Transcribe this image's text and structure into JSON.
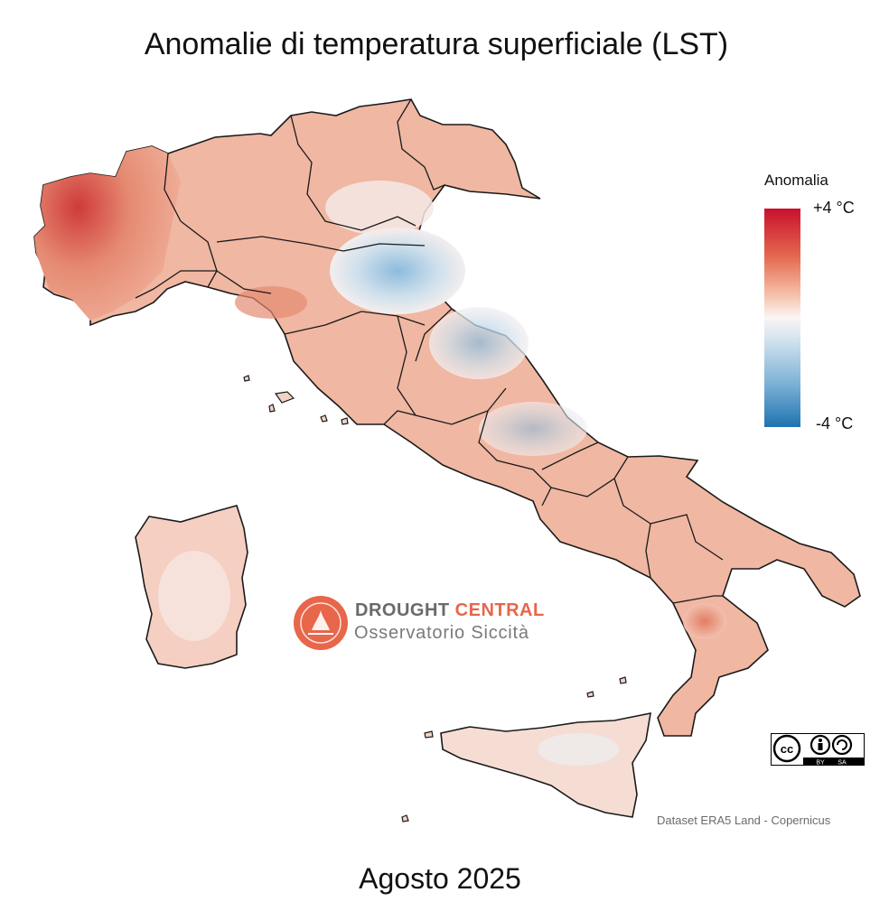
{
  "title": "Anomalie di temperatura superficiale (LST)",
  "subtitle": "Agosto 2025",
  "legend": {
    "title": "Anomalia",
    "max_label": "+4 °C",
    "min_label": "-4 °C",
    "range": [
      -4,
      4
    ],
    "colors": {
      "warm": "#c8102e",
      "neutral": "#fbf5f3",
      "cool": "#1f73b0"
    }
  },
  "logo": {
    "name_part1": "DROUGHT ",
    "name_part2": "CENTRAL",
    "tagline": "Osservatorio Siccità",
    "accent_color": "#e8664a"
  },
  "credit": "Dataset ERA5 Land - Copernicus",
  "license": {
    "icons": [
      "cc-icon",
      "by-icon",
      "sa-icon"
    ],
    "labels": [
      "BY",
      "SA"
    ]
  }
}
